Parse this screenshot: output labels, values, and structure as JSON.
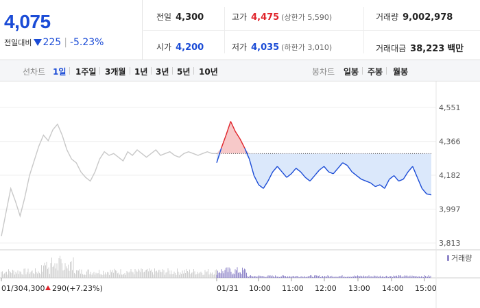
{
  "summary": {
    "current_price": "4,075",
    "change_label": "전일대비",
    "change_amount": "225",
    "change_pct": "-5.23%",
    "prev_close_label": "전일",
    "prev_close": "4,300",
    "open_label": "시가",
    "open": "4,200",
    "high_label": "고가",
    "high": "4,475",
    "upper_limit": "(상한가 5,590)",
    "low_label": "저가",
    "low": "4,035",
    "lower_limit": "(하한가 3,010)",
    "volume_label": "거래량",
    "volume": "9,002,978",
    "value_label": "거래대금",
    "value": "38,223",
    "value_unit": "백만"
  },
  "period_bar": {
    "line_label": "선차트",
    "periods": [
      "1일",
      "1주일",
      "3개월",
      "1년",
      "3년",
      "5년",
      "10년"
    ],
    "active_period": "1일",
    "candle_label": "봉차트",
    "candles": [
      "일봉",
      "주봉",
      "월봉"
    ]
  },
  "colors": {
    "up": "#e0242b",
    "down": "#1a4bd6",
    "prev_day": "#c8c8c8",
    "fill_down": "#dbe8fb",
    "fill_up": "#f7c9c9"
  },
  "chart_data": {
    "type": "line",
    "ylim": [
      3813,
      4551
    ],
    "yticks": [
      "4,551",
      "4,366",
      "4,182",
      "3,997",
      "3,813"
    ],
    "reference_price": 4300,
    "reference_line": "dotted",
    "x_start_label": "01/30",
    "prev_day_summary": {
      "close": "4,300",
      "change": "290",
      "change_pct": "(+7.23%)"
    },
    "today_label": "01/31",
    "time_labels": [
      "10:00",
      "11:00",
      "12:00",
      "13:00",
      "14:00",
      "15:00"
    ],
    "volume_legend": "거래량",
    "series": [
      {
        "role": "prev_day",
        "values": [
          3850,
          3980,
          4110,
          4040,
          3960,
          4060,
          4180,
          4260,
          4340,
          4400,
          4370,
          4430,
          4460,
          4400,
          4320,
          4270,
          4250,
          4200,
          4170,
          4150,
          4200,
          4270,
          4310,
          4290,
          4300,
          4280,
          4260,
          4310,
          4290,
          4320,
          4300,
          4280,
          4300,
          4320,
          4290,
          4300,
          4310,
          4290,
          4280,
          4300,
          4310,
          4300,
          4290,
          4300,
          4310,
          4300,
          4300
        ]
      },
      {
        "role": "today",
        "values": [
          4250,
          4330,
          4400,
          4475,
          4420,
          4380,
          4330,
          4270,
          4180,
          4130,
          4110,
          4150,
          4200,
          4230,
          4200,
          4170,
          4190,
          4220,
          4200,
          4170,
          4150,
          4180,
          4210,
          4230,
          4200,
          4190,
          4220,
          4250,
          4235,
          4200,
          4180,
          4160,
          4150,
          4140,
          4120,
          4130,
          4110,
          4160,
          4180,
          4150,
          4160,
          4200,
          4230,
          4170,
          4110,
          4080,
          4075
        ]
      }
    ]
  }
}
